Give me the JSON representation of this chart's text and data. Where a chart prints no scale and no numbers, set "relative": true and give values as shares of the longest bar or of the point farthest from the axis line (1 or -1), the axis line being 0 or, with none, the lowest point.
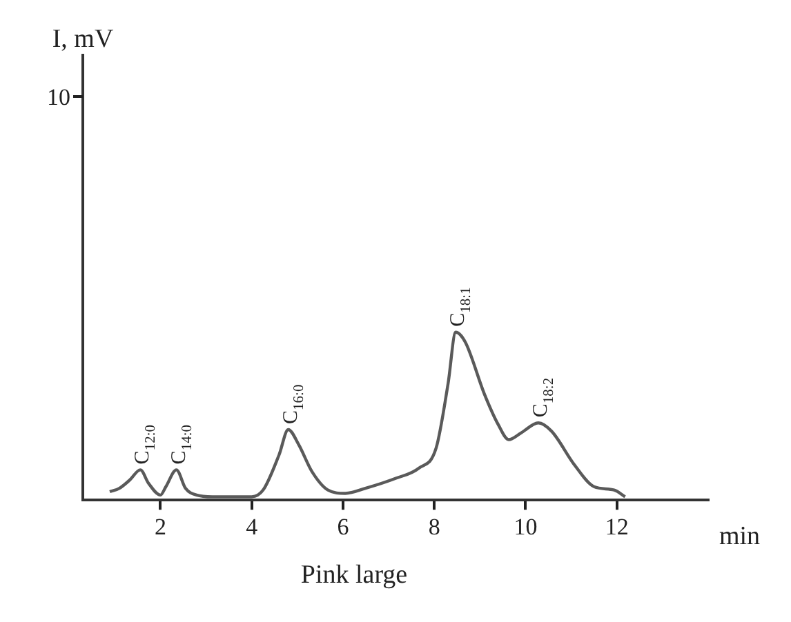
{
  "chart_data": {
    "type": "line",
    "title": "Pink large",
    "xlabel": "min",
    "relative": true,
    "xlim": [
      0.3,
      14
    ],
    "xticks": [
      2,
      4,
      6,
      8,
      10,
      12
    ],
    "grid": false,
    "legend": false,
    "marker": "none",
    "line_style": "solid",
    "series": [
      {
        "color": "#5a5a5a",
        "x": [
          0.89,
          1.1,
          1.33,
          1.56,
          1.74,
          2.0,
          2.12,
          2.35,
          2.55,
          2.79,
          3.14,
          4.0,
          4.25,
          4.6,
          4.8,
          5.03,
          5.32,
          5.67,
          6.05,
          6.49,
          7.16,
          7.66,
          8.04,
          8.3,
          8.47,
          8.68,
          9.1,
          9.4,
          9.63,
          9.9,
          10.28,
          10.57,
          11.07,
          11.5,
          11.94,
          12.18
        ],
        "values": [
          0.05,
          0.07,
          0.12,
          0.18,
          0.1,
          0.03,
          0.08,
          0.18,
          0.07,
          0.03,
          0.02,
          0.02,
          0.06,
          0.27,
          0.42,
          0.33,
          0.17,
          0.06,
          0.04,
          0.07,
          0.13,
          0.19,
          0.31,
          0.69,
          1,
          0.94,
          0.63,
          0.45,
          0.36,
          0.4,
          0.46,
          0.41,
          0.21,
          0.08,
          0.06,
          0.02
        ]
      }
    ],
    "annotations": [
      "I, mV",
      "10",
      {
        "text": "C$_{12:0}$",
        "x": 1.56,
        "y": 0.18
      },
      {
        "text": "C$_{14:0}$",
        "x": 2.35,
        "y": 0.18
      },
      {
        "text": "C$_{16:0}$",
        "x": 4.8,
        "y": 0.42
      },
      {
        "text": "C$_{18:1}$",
        "x": 8.47,
        "y": 1
      },
      {
        "text": "C$_{18:2}$",
        "x": 10.28,
        "y": 0.46
      }
    ]
  }
}
